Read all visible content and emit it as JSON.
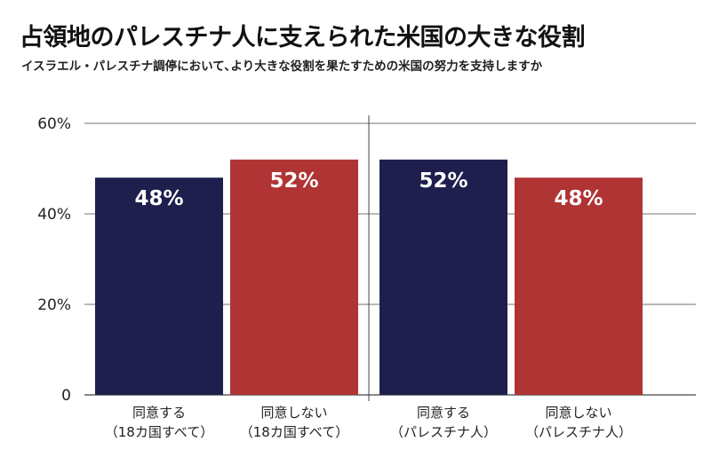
{
  "title": "占領地のパレスチナ人に支えられた米国の大きな役割",
  "subtitle": "イスラエル・パレスチナ調停において､より大きな役割を果たすための米国の努力を支持しますか",
  "colors": {
    "agree": "#1f1f4d",
    "disagree": "#b03434",
    "grid": "#444444"
  },
  "chart_data": {
    "type": "bar",
    "title": "占領地のパレスチナ人に支えられた米国の大きな役割",
    "subtitle": "イスラエル・パレスチナ調停において､より大きな役割を果たすための米国の努力を支持しますか",
    "ylim": [
      0,
      60
    ],
    "yticks": [
      0,
      20,
      40,
      60
    ],
    "ytick_labels": [
      "0",
      "20%",
      "40%",
      "60%"
    ],
    "grid": true,
    "categories": [
      [
        "同意する",
        "（18カ国すべて）"
      ],
      [
        "同意しない",
        "（18カ国すべて）"
      ],
      [
        "同意する",
        "（パレスチナ人）"
      ],
      [
        "同意しない",
        "（パレスチナ人）"
      ]
    ],
    "values": [
      48,
      52,
      52,
      48
    ],
    "value_labels": [
      "48%",
      "52%",
      "52%",
      "48%"
    ],
    "bar_colors": [
      "#1f1f4d",
      "#b03434",
      "#1f1f4d",
      "#b03434"
    ],
    "groups": [
      {
        "members": [
          0,
          1
        ]
      },
      {
        "members": [
          2,
          3
        ]
      }
    ]
  }
}
